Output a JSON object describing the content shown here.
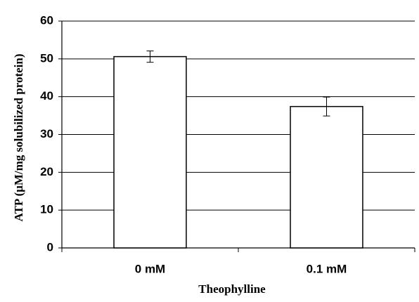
{
  "chart_data": {
    "type": "bar",
    "categories": [
      "0 mM",
      "0.1 mM"
    ],
    "values": [
      50.6,
      37.4
    ],
    "errors": [
      1.5,
      2.5
    ],
    "color": "#ffffff",
    "ylim": [
      0,
      60
    ],
    "yticks": [
      0,
      10,
      20,
      30,
      40,
      50,
      60
    ],
    "grid": true,
    "xlabel": "Theophylline",
    "ylabel": "ATP (μM/mg solubilized protein)"
  }
}
